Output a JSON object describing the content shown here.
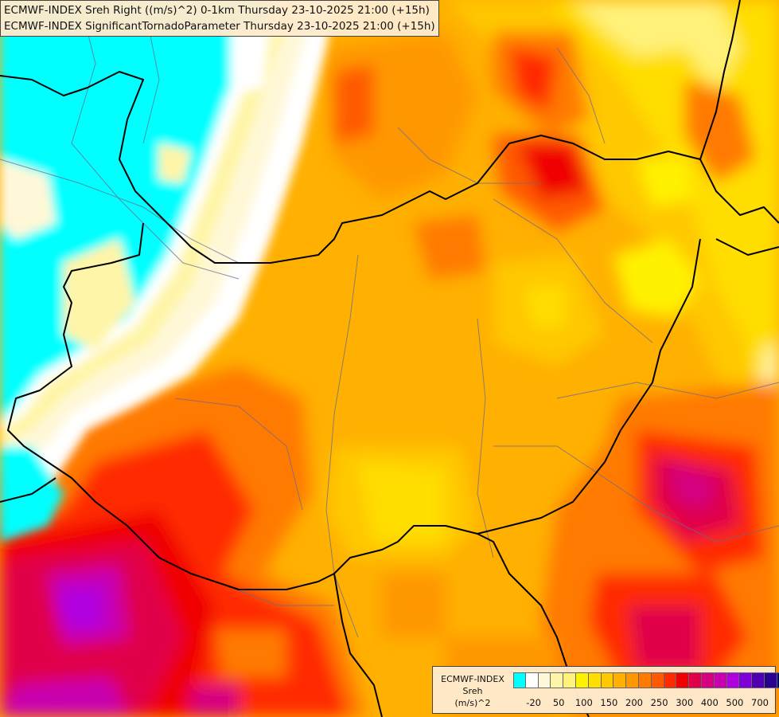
{
  "title_lines": [
    "ECMWF-INDEX Sreh Right ((m/s)^2) 0-1km Thursday 23-10-2025 21:00 (+15h)",
    "ECMWF-INDEX SignificantTornadoParameter Thursday 23-10-2025 21:00 (+15h)"
  ],
  "legend": {
    "line1": "ECMWF-INDEX",
    "line2": "Sreh",
    "line3": "(m/s)^2",
    "ticks": [
      "-20",
      "50",
      "100",
      "150",
      "200",
      "250",
      "300",
      "400",
      "500",
      "700"
    ],
    "colors": [
      "#00ffff",
      "#ffffff",
      "#fff8d8",
      "#fff5a8",
      "#fff27a",
      "#fff200",
      "#ffde00",
      "#ffc800",
      "#ffb000",
      "#ff9800",
      "#ff7a00",
      "#ff5a00",
      "#ff2a00",
      "#f00000",
      "#e0004a",
      "#d40080",
      "#c800b0",
      "#b000e0",
      "#8000d8",
      "#5000b0",
      "#2a0090",
      "#000070"
    ]
  }
}
